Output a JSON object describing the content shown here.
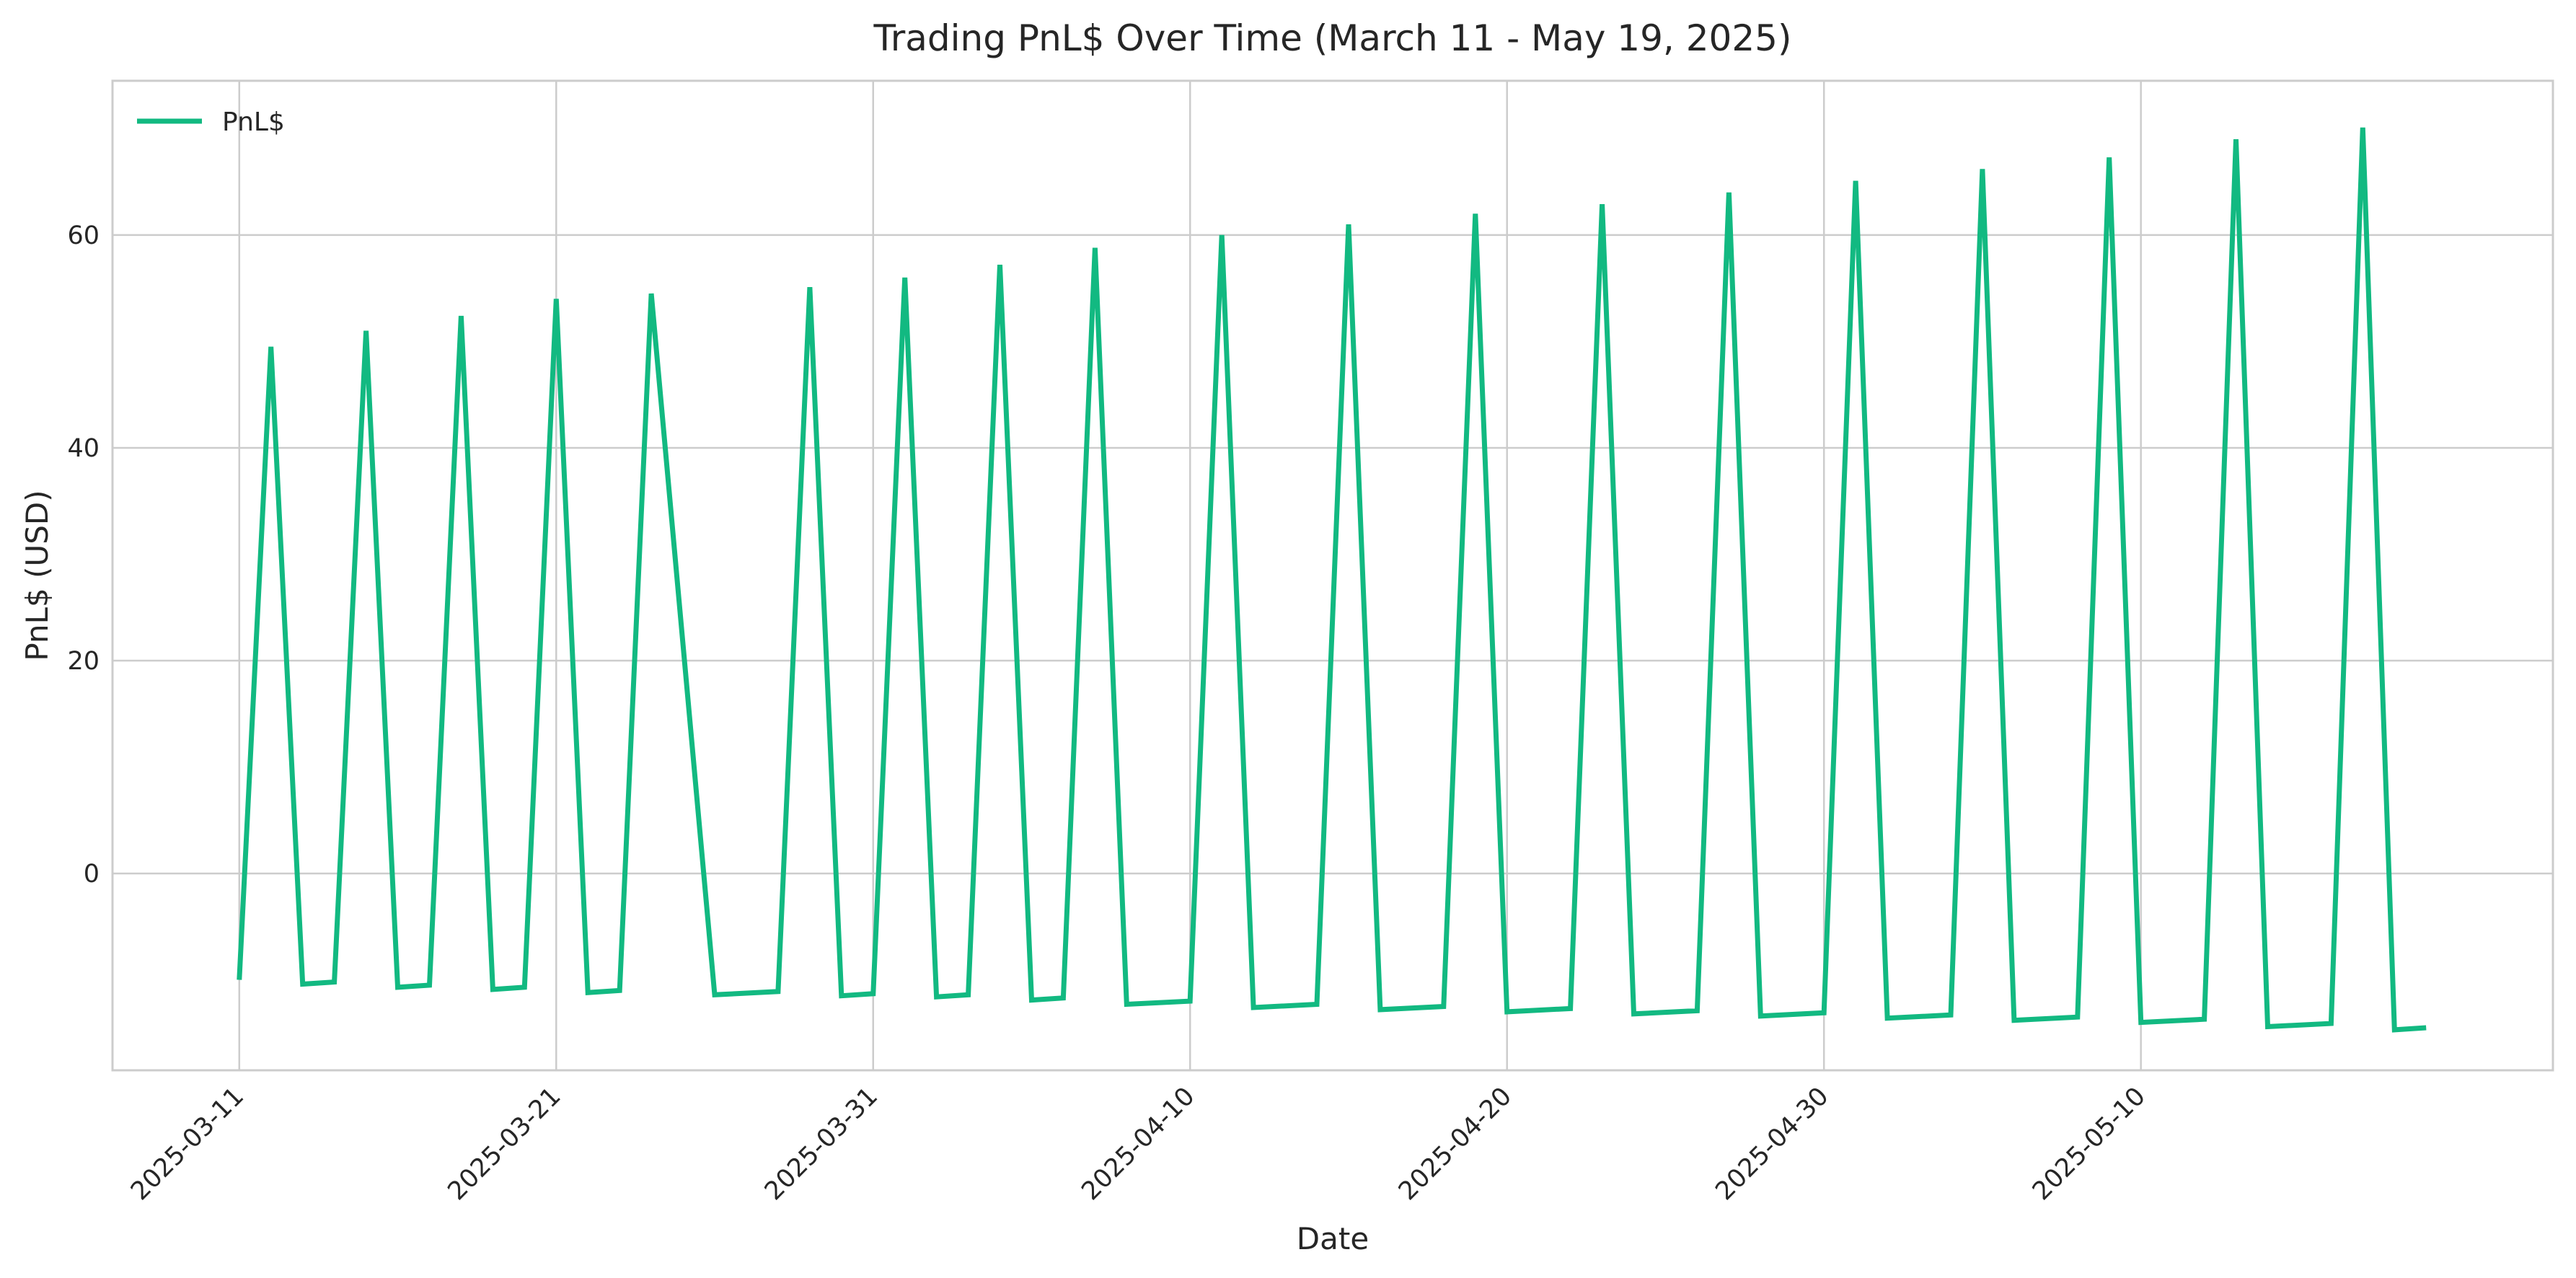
{
  "chart_data": {
    "type": "line",
    "title": "Trading PnL$ Over Time (March 11 - May 19, 2025)",
    "xlabel": "Date",
    "ylabel": "PnL$ (USD)",
    "xlim": [
      "2025-03-07",
      "2025-05-23"
    ],
    "ylim": [
      -18.5,
      74.5
    ],
    "x_ticks": [
      "2025-03-11",
      "2025-03-21",
      "2025-03-31",
      "2025-04-10",
      "2025-04-20",
      "2025-04-30",
      "2025-05-10"
    ],
    "y_ticks": [
      0,
      20,
      40,
      60
    ],
    "grid": true,
    "legend": {
      "position": "top-left",
      "entries": [
        "PnL$"
      ]
    },
    "colors": {
      "series": "#12b981",
      "grid": "#cccccc",
      "text": "#262626"
    },
    "series": [
      {
        "name": "PnL$",
        "x": [
          "2025-03-11",
          "2025-03-12",
          "2025-03-13",
          "2025-03-14",
          "2025-03-15",
          "2025-03-16",
          "2025-03-17",
          "2025-03-18",
          "2025-03-19",
          "2025-03-20",
          "2025-03-21",
          "2025-03-22",
          "2025-03-23",
          "2025-03-24",
          "2025-03-26",
          "2025-03-28",
          "2025-03-29",
          "2025-03-30",
          "2025-03-31",
          "2025-04-01",
          "2025-04-02",
          "2025-04-03",
          "2025-04-04",
          "2025-04-05",
          "2025-04-06",
          "2025-04-07",
          "2025-04-08",
          "2025-04-10",
          "2025-04-11",
          "2025-04-12",
          "2025-04-14",
          "2025-04-15",
          "2025-04-16",
          "2025-04-18",
          "2025-04-19",
          "2025-04-20",
          "2025-04-22",
          "2025-04-23",
          "2025-04-24",
          "2025-04-26",
          "2025-04-27",
          "2025-04-28",
          "2025-04-30",
          "2025-05-01",
          "2025-05-02",
          "2025-05-04",
          "2025-05-05",
          "2025-05-06",
          "2025-05-08",
          "2025-05-09",
          "2025-05-10",
          "2025-05-12",
          "2025-05-13",
          "2025-05-14",
          "2025-05-16",
          "2025-05-17",
          "2025-05-18",
          "2025-05-19"
        ],
        "values": [
          -10.0,
          49.5,
          -10.4,
          -10.2,
          51.0,
          -10.7,
          -10.5,
          52.4,
          -10.9,
          -10.7,
          54.0,
          -11.2,
          -11.0,
          54.5,
          -11.4,
          -11.1,
          55.1,
          -11.5,
          -11.3,
          56.0,
          -11.6,
          -11.4,
          57.2,
          -11.9,
          -11.7,
          58.8,
          -12.3,
          -12.0,
          60.0,
          -12.6,
          -12.3,
          61.0,
          -12.8,
          -12.5,
          62.0,
          -13.0,
          -12.7,
          62.9,
          -13.2,
          -12.9,
          64.0,
          -13.4,
          -13.1,
          65.1,
          -13.6,
          -13.3,
          66.2,
          -13.8,
          -13.5,
          67.3,
          -14.0,
          -13.7,
          69.0,
          -14.4,
          -14.1,
          70.1,
          -14.7,
          -14.5
        ]
      }
    ]
  }
}
